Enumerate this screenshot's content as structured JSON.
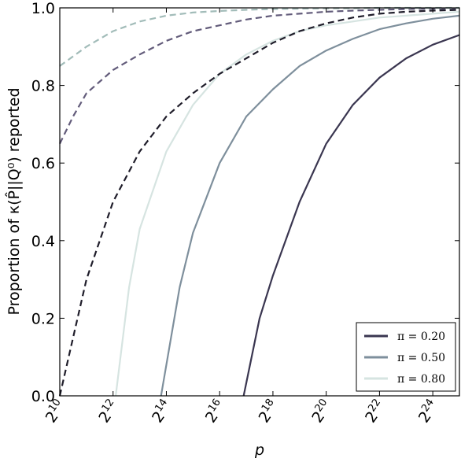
{
  "chart_data": {
    "type": "line",
    "xlabel": "p",
    "ylabel": "Proportion of κ(P̂||Q⁰) reported",
    "xscale": "log2",
    "xlim_log2": [
      10,
      25
    ],
    "ylim": [
      0,
      1
    ],
    "x_ticks": [
      {
        "base": "2",
        "exp": "10"
      },
      {
        "base": "2",
        "exp": "12"
      },
      {
        "base": "2",
        "exp": "14"
      },
      {
        "base": "2",
        "exp": "16"
      },
      {
        "base": "2",
        "exp": "18"
      },
      {
        "base": "2",
        "exp": "20"
      },
      {
        "base": "2",
        "exp": "22"
      },
      {
        "base": "2",
        "exp": "24"
      }
    ],
    "y_ticks": [
      "0.0",
      "0.2",
      "0.4",
      "0.6",
      "0.8",
      "1.0"
    ],
    "grid": false,
    "legend": {
      "position": "bottom-right",
      "entries": [
        {
          "label": "π = 0.20",
          "color": "#3a3650"
        },
        {
          "label": "π = 0.50",
          "color": "#7e8f9c"
        },
        {
          "label": "π = 0.80",
          "color": "#d6e4e1"
        }
      ]
    },
    "series": [
      {
        "name": "π = 0.20",
        "style": "solid",
        "color": "#3a3650",
        "log2_x": [
          16.9,
          17.5,
          18,
          19,
          20,
          21,
          22,
          23,
          24,
          25
        ],
        "y": [
          0.0,
          0.2,
          0.31,
          0.5,
          0.65,
          0.75,
          0.82,
          0.87,
          0.905,
          0.93
        ]
      },
      {
        "name": "π = 0.50",
        "style": "solid",
        "color": "#7e8f9c",
        "log2_x": [
          13.8,
          14.5,
          15,
          16,
          17,
          18,
          19,
          20,
          21,
          22,
          23,
          24,
          25
        ],
        "y": [
          0.0,
          0.28,
          0.42,
          0.6,
          0.72,
          0.79,
          0.85,
          0.89,
          0.92,
          0.945,
          0.96,
          0.972,
          0.98
        ]
      },
      {
        "style": "solid",
        "color": "#d6e4e1",
        "log2_x": [
          12.1,
          12.6,
          13,
          14,
          15,
          16,
          17,
          18,
          19,
          20,
          21,
          22,
          23,
          24,
          25
        ],
        "y": [
          0.0,
          0.28,
          0.43,
          0.63,
          0.75,
          0.83,
          0.88,
          0.915,
          0.94,
          0.955,
          0.965,
          0.975,
          0.98,
          0.985,
          0.99
        ]
      },
      {
        "style": "dashed",
        "color": "#1f1d2a",
        "log2_x": [
          10,
          10.5,
          11,
          12,
          13,
          14,
          15,
          16,
          17,
          18,
          19,
          20,
          21,
          22,
          23,
          24,
          25
        ],
        "y": [
          0.0,
          0.15,
          0.3,
          0.5,
          0.63,
          0.72,
          0.78,
          0.83,
          0.87,
          0.91,
          0.94,
          0.96,
          0.975,
          0.985,
          0.99,
          0.993,
          0.995
        ]
      },
      {
        "style": "dashed",
        "color": "#625b7a",
        "log2_x": [
          10,
          10.5,
          11,
          12,
          13,
          14,
          15,
          16,
          17,
          18,
          19,
          20,
          21,
          22,
          23,
          24,
          25
        ],
        "y": [
          0.65,
          0.72,
          0.78,
          0.84,
          0.88,
          0.915,
          0.94,
          0.955,
          0.97,
          0.98,
          0.985,
          0.99,
          0.993,
          0.995,
          0.997,
          0.998,
          0.999
        ]
      },
      {
        "style": "dashed",
        "color": "#a2bcb9",
        "log2_x": [
          10,
          11,
          12,
          13,
          14,
          15,
          16,
          17,
          18,
          19,
          20,
          21,
          22,
          23,
          24,
          25
        ],
        "y": [
          0.85,
          0.9,
          0.94,
          0.965,
          0.98,
          0.988,
          0.992,
          0.995,
          0.997,
          0.998,
          0.999,
          0.999,
          1.0,
          1.0,
          1.0,
          1.0
        ]
      }
    ]
  }
}
